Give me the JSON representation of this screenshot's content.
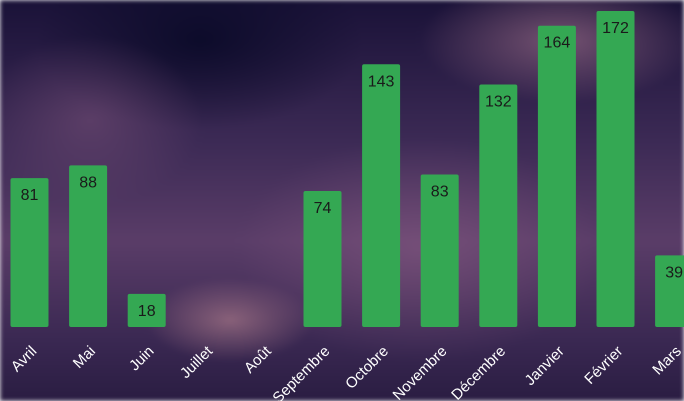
{
  "chart_data": {
    "type": "bar",
    "categories": [
      "Avril",
      "Mai",
      "Juin",
      "Juillet",
      "Août",
      "Septembre",
      "Octobre",
      "Novembre",
      "Décembre",
      "Janvier",
      "Février",
      "Mars"
    ],
    "values": [
      81,
      88,
      18,
      0,
      0,
      74,
      143,
      83,
      132,
      164,
      172,
      39
    ],
    "value_labels": [
      "81",
      "88",
      "18",
      "",
      "",
      "74",
      "143",
      "83",
      "132",
      "164",
      "172",
      "39"
    ],
    "ylim": [
      0,
      172
    ],
    "bar_color": "#34a853",
    "label_color": "#ffffff",
    "grid": false,
    "legend": "none"
  }
}
